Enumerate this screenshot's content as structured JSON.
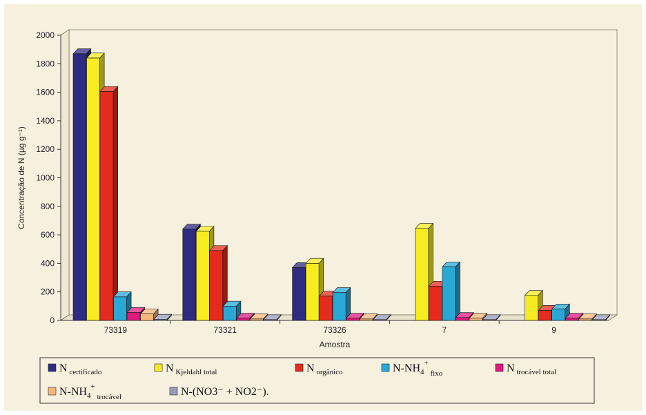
{
  "chart_data": {
    "type": "bar",
    "title": "",
    "xlabel": "Amostra",
    "ylabel": "Concentração de N (µg g⁻¹)",
    "ylim": [
      0,
      2000
    ],
    "yticks": [
      "0",
      "200",
      "400",
      "600",
      "800",
      "1000",
      "1200",
      "1400",
      "1600",
      "1800",
      "2000"
    ],
    "categories": [
      "73319",
      "73321",
      "73326",
      "7",
      "9"
    ],
    "grid": false,
    "legend_position": "bottom",
    "series": [
      {
        "name": "N certificado",
        "legend": {
          "main": "N",
          "sub": "certificado"
        },
        "color": "#2e2b82",
        "values": [
          1870,
          640,
          370,
          null,
          null
        ]
      },
      {
        "name": "N Kjeldahl total",
        "legend": {
          "main": "N",
          "sub": "Kjeldahl total"
        },
        "color": "#f7ec1f",
        "values": [
          1840,
          625,
          400,
          645,
          175
        ]
      },
      {
        "name": "N orgânico",
        "legend": {
          "main": "N",
          "sub": "orgânico"
        },
        "color": "#e52b1d",
        "values": [
          1605,
          490,
          170,
          240,
          70
        ]
      },
      {
        "name": "N-NH4+ fixo",
        "legend": {
          "main": "N-NH",
          "sub": "4",
          "sup": "+",
          "sub2": "fixo"
        },
        "color": "#29a8d6",
        "values": [
          165,
          100,
          195,
          375,
          80
        ]
      },
      {
        "name": "N trocável total",
        "legend": {
          "main": "N",
          "sub": "trocável total"
        },
        "color": "#e0197f",
        "values": [
          55,
          15,
          15,
          20,
          15
        ]
      },
      {
        "name": "N-NH4+ trocável",
        "legend": {
          "main": "N-NH",
          "sub": "4",
          "sup": "+",
          "sub2": "trocável"
        },
        "color": "#f7b77a",
        "values": [
          45,
          10,
          10,
          15,
          10
        ]
      },
      {
        "name": "N-(NO3- + NO2-).",
        "legend": {
          "text": "N-(NO3⁻ + NO2⁻)."
        },
        "color": "#9a9cbe",
        "values": [
          8,
          5,
          5,
          5,
          5
        ]
      }
    ]
  }
}
